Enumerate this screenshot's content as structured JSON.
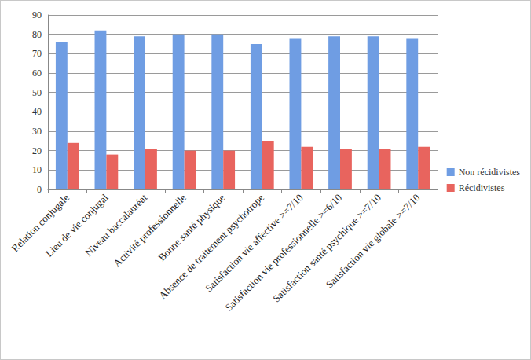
{
  "chart_data": {
    "type": "bar",
    "categories": [
      "Relation conjugale",
      "Lieu de vie conjugal",
      "Niveau baccalauréat",
      "Activité professionnelle",
      "Bonne santé physique",
      "Absence de traitement psychotrope",
      "Satisfaction vie affective >=7/10",
      "Satisfaction vie professionnelle >=6/10",
      "Satisfaction santé psychique >=7/10",
      "Satisfaction vie globale >=7/10"
    ],
    "series": [
      {
        "name": "Non récidivistes",
        "color": "#6f9de3",
        "values": [
          76,
          82,
          79,
          80,
          80,
          75,
          78,
          79,
          79,
          78
        ]
      },
      {
        "name": "Récidivistes",
        "color": "#e8645e",
        "values": [
          24,
          18,
          21,
          20,
          20,
          25,
          22,
          21,
          21,
          22
        ]
      }
    ],
    "ylim": [
      0,
      90
    ],
    "yticks": [
      0,
      10,
      20,
      30,
      40,
      50,
      60,
      70,
      80,
      90
    ],
    "grid": true,
    "legend": "right"
  }
}
